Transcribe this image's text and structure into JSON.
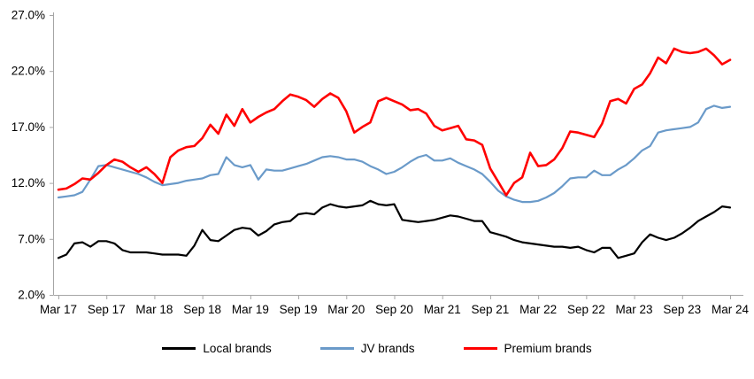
{
  "chart_data": {
    "type": "line",
    "title": "",
    "xlabel": "",
    "ylabel": "",
    "grid": false,
    "background": "#ffffff",
    "axis_color": "#a6a6a6",
    "tick_label_color": "#000000",
    "ylim": [
      2,
      27
    ],
    "y_tick_labels": [
      "2.0%",
      "7.0%",
      "12.0%",
      "17.0%",
      "22.0%",
      "27.0%"
    ],
    "x_tick_labels": [
      "Mar 17",
      "Sep 17",
      "Mar 18",
      "Sep 18",
      "Mar 19",
      "Sep 19",
      "Mar 20",
      "Sep 20",
      "Mar 21",
      "Sep 21",
      "Mar 22",
      "Sep 22",
      "Mar 23",
      "Sep 23",
      "Mar 24"
    ],
    "x_points_per_tick": 6,
    "x_frequency": "monthly",
    "legend_position": "bottom",
    "series": [
      {
        "name": "Local brands",
        "color": "#000000",
        "width": 2.2,
        "values": [
          5.3,
          5.6,
          6.6,
          6.7,
          6.3,
          6.8,
          6.8,
          6.6,
          6.0,
          5.8,
          5.8,
          5.8,
          5.7,
          5.6,
          5.6,
          5.6,
          5.5,
          6.4,
          7.8,
          6.9,
          6.8,
          7.3,
          7.8,
          8.0,
          7.9,
          7.3,
          7.7,
          8.3,
          8.5,
          8.6,
          9.2,
          9.3,
          9.2,
          9.8,
          10.1,
          9.9,
          9.8,
          9.9,
          10.0,
          10.4,
          10.1,
          10.0,
          10.1,
          8.7,
          8.6,
          8.5,
          8.6,
          8.7,
          8.9,
          9.1,
          9.0,
          8.8,
          8.6,
          8.6,
          7.6,
          7.4,
          7.2,
          6.9,
          6.7,
          6.6,
          6.5,
          6.4,
          6.3,
          6.3,
          6.2,
          6.3,
          6.0,
          5.8,
          6.2,
          6.2,
          5.3,
          5.5,
          5.7,
          6.7,
          7.4,
          7.1,
          6.9,
          7.1,
          7.5,
          8.0,
          8.6,
          9.0,
          9.4,
          9.9,
          9.8
        ]
      },
      {
        "name": "JV brands",
        "color": "#6a9ac9",
        "width": 2.2,
        "values": [
          10.7,
          10.8,
          10.9,
          11.2,
          12.3,
          13.5,
          13.6,
          13.4,
          13.2,
          13.0,
          12.8,
          12.5,
          12.1,
          11.8,
          11.9,
          12.0,
          12.2,
          12.3,
          12.4,
          12.7,
          12.8,
          14.3,
          13.6,
          13.4,
          13.6,
          12.3,
          13.2,
          13.1,
          13.1,
          13.3,
          13.5,
          13.7,
          14.0,
          14.3,
          14.4,
          14.3,
          14.1,
          14.1,
          13.9,
          13.5,
          13.2,
          12.8,
          13.0,
          13.4,
          13.9,
          14.3,
          14.5,
          14.0,
          14.0,
          14.2,
          13.8,
          13.5,
          13.2,
          12.8,
          12.1,
          11.3,
          10.8,
          10.5,
          10.3,
          10.3,
          10.4,
          10.7,
          11.1,
          11.7,
          12.4,
          12.5,
          12.5,
          13.1,
          12.7,
          12.7,
          13.2,
          13.6,
          14.2,
          14.9,
          15.3,
          16.5,
          16.7,
          16.8,
          16.9,
          17.0,
          17.4,
          18.6,
          18.9,
          18.7,
          18.8
        ]
      },
      {
        "name": "Premium brands",
        "color": "#ff0000",
        "width": 2.6,
        "values": [
          11.4,
          11.5,
          11.9,
          12.4,
          12.3,
          12.9,
          13.6,
          14.1,
          13.9,
          13.4,
          13.0,
          13.4,
          12.8,
          12.0,
          14.3,
          14.9,
          15.2,
          15.3,
          16.0,
          17.2,
          16.4,
          18.1,
          17.1,
          18.6,
          17.4,
          17.9,
          18.3,
          18.6,
          19.3,
          19.9,
          19.7,
          19.4,
          18.8,
          19.5,
          20.0,
          19.6,
          18.4,
          16.5,
          17.0,
          17.4,
          19.3,
          19.6,
          19.3,
          19.0,
          18.5,
          18.6,
          18.2,
          17.1,
          16.7,
          16.9,
          17.1,
          15.9,
          15.8,
          15.4,
          13.3,
          12.1,
          10.9,
          12.0,
          12.5,
          14.7,
          13.5,
          13.6,
          14.1,
          15.1,
          16.6,
          16.5,
          16.3,
          16.1,
          17.3,
          19.3,
          19.5,
          19.1,
          20.4,
          20.8,
          21.8,
          23.2,
          22.7,
          24.0,
          23.7,
          23.6,
          23.7,
          24.0,
          23.4,
          22.6,
          23.0
        ]
      }
    ]
  }
}
